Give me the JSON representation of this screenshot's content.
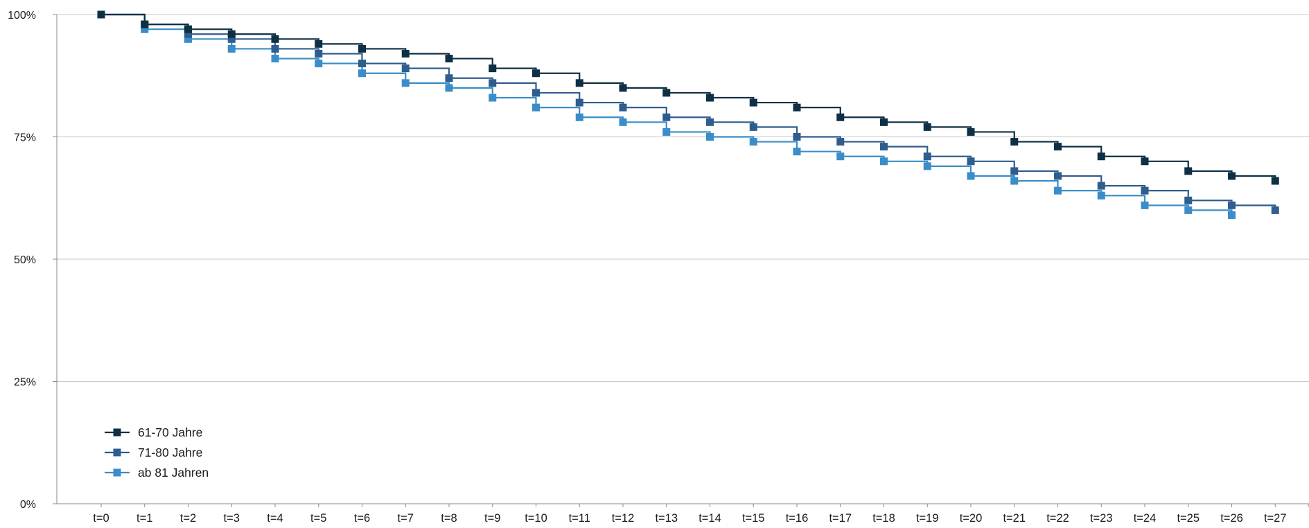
{
  "chart_data": {
    "type": "line",
    "style": "step",
    "title": "",
    "xlabel": "",
    "ylabel": "",
    "ylim": [
      0,
      100
    ],
    "grid": true,
    "legend_position": "bottom-left",
    "y_ticks": [
      {
        "value": 100,
        "label": "100%"
      },
      {
        "value": 75,
        "label": "75%"
      },
      {
        "value": 50,
        "label": "50%"
      },
      {
        "value": 25,
        "label": "25%"
      },
      {
        "value": 0,
        "label": "0%"
      }
    ],
    "categories": [
      "t=0",
      "t=1",
      "t=2",
      "t=3",
      "t=4",
      "t=5",
      "t=6",
      "t=7",
      "t=8",
      "t=9",
      "t=10",
      "t=11",
      "t=12",
      "t=13",
      "t=14",
      "t=15",
      "t=16",
      "t=17",
      "t=18",
      "t=19",
      "t=20",
      "t=21",
      "t=22",
      "t=23",
      "t=24",
      "t=25",
      "t=26",
      "t=27"
    ],
    "series": [
      {
        "name": "61-70 Jahre",
        "color": "#0e2f44",
        "values": [
          100,
          98,
          97,
          96,
          95,
          94,
          93,
          92,
          91,
          89,
          88,
          86,
          85,
          84,
          83,
          82,
          81,
          79,
          78,
          77,
          76,
          74,
          73,
          71,
          70,
          68,
          67,
          66
        ]
      },
      {
        "name": "71-80 Jahre",
        "color": "#2e5d8e",
        "values": [
          100,
          98,
          96,
          95,
          93,
          92,
          90,
          89,
          87,
          86,
          84,
          82,
          81,
          79,
          78,
          77,
          75,
          74,
          73,
          71,
          70,
          68,
          67,
          65,
          64,
          62,
          61,
          60
        ]
      },
      {
        "name": "ab 81 Jahren",
        "color": "#3a8dc8",
        "values": [
          100,
          97,
          95,
          93,
          91,
          90,
          88,
          86,
          85,
          83,
          81,
          79,
          78,
          76,
          75,
          74,
          72,
          71,
          70,
          69,
          67,
          66,
          64,
          63,
          61,
          60,
          59,
          null
        ]
      }
    ]
  }
}
